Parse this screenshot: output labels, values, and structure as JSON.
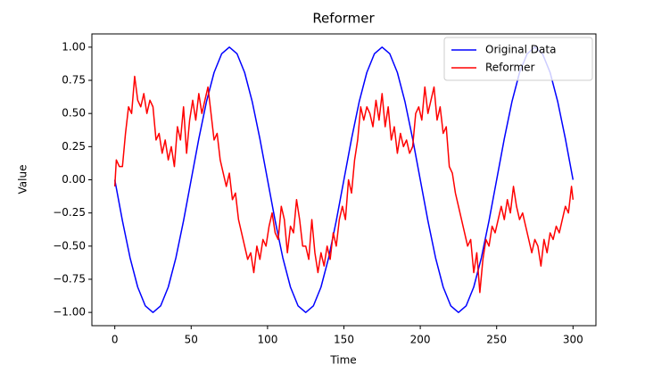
{
  "chart_data": {
    "type": "line",
    "title": "Reformer",
    "x_label": "Time",
    "y_label": "Value",
    "xlim": [
      -15,
      315
    ],
    "ylim": [
      -1.1,
      1.1
    ],
    "xticks": [
      0,
      50,
      100,
      150,
      200,
      250,
      300
    ],
    "yticks": [
      {
        "value": -1,
        "label": "−1.00"
      },
      {
        "value": -0.75,
        "label": "−0.75"
      },
      {
        "value": -0.5,
        "label": "−0.50"
      },
      {
        "value": -0.25,
        "label": "−0.25"
      },
      {
        "value": 0,
        "label": "0.00"
      },
      {
        "value": 0.25,
        "label": "0.25"
      },
      {
        "value": 0.5,
        "label": "0.50"
      },
      {
        "value": 0.75,
        "label": "0.75"
      },
      {
        "value": 1,
        "label": "1.00"
      }
    ],
    "legend": "upper right",
    "series": [
      {
        "name": "Original Data",
        "color": "#0000ff",
        "x": [
          0,
          5,
          10,
          15,
          20,
          25,
          30,
          35,
          40,
          45,
          50,
          55,
          60,
          65,
          70,
          75,
          80,
          85,
          90,
          95,
          100,
          105,
          110,
          115,
          120,
          125,
          130,
          135,
          140,
          145,
          150,
          155,
          160,
          165,
          170,
          175,
          180,
          185,
          190,
          195,
          200,
          205,
          210,
          215,
          220,
          225,
          230,
          235,
          240,
          245,
          250,
          255,
          260,
          265,
          270,
          275,
          280,
          285,
          290,
          295,
          300
        ],
        "values": [
          0,
          -0.309,
          -0.588,
          -0.809,
          -0.951,
          -1,
          -0.951,
          -0.809,
          -0.588,
          -0.309,
          0,
          0.309,
          0.588,
          0.809,
          0.951,
          1,
          0.951,
          0.809,
          0.588,
          0.309,
          0,
          -0.309,
          -0.588,
          -0.809,
          -0.951,
          -1,
          -0.951,
          -0.809,
          -0.588,
          -0.309,
          0,
          0.309,
          0.588,
          0.809,
          0.951,
          1,
          0.951,
          0.809,
          0.588,
          0.309,
          0,
          -0.309,
          -0.588,
          -0.809,
          -0.951,
          -1,
          -0.951,
          -0.809,
          -0.588,
          -0.309,
          0,
          0.309,
          0.588,
          0.809,
          0.951,
          1,
          0.951,
          0.809,
          0.588,
          0.309,
          0
        ]
      },
      {
        "name": "Reformer",
        "color": "#ff0000",
        "x": [
          0,
          1,
          3,
          5,
          7,
          9,
          11,
          13,
          15,
          17,
          19,
          21,
          23,
          25,
          27,
          29,
          31,
          33,
          35,
          37,
          39,
          41,
          43,
          45,
          47,
          49,
          51,
          53,
          55,
          57,
          59,
          61,
          63,
          65,
          67,
          69,
          71,
          73,
          75,
          77,
          79,
          81,
          83,
          85,
          87,
          89,
          91,
          93,
          95,
          97,
          99,
          101,
          103,
          105,
          107,
          109,
          111,
          113,
          115,
          117,
          119,
          121,
          123,
          125,
          127,
          129,
          131,
          133,
          135,
          137,
          139,
          141,
          143,
          145,
          147,
          149,
          151,
          153,
          155,
          157,
          159,
          161,
          163,
          165,
          167,
          169,
          171,
          173,
          175,
          177,
          179,
          181,
          183,
          185,
          187,
          189,
          191,
          193,
          195,
          197,
          199,
          201,
          203,
          205,
          207,
          209,
          211,
          213,
          215,
          217,
          219,
          221,
          223,
          225,
          227,
          229,
          231,
          233,
          235,
          237,
          239,
          241,
          243,
          245,
          247,
          249,
          251,
          253,
          255,
          257,
          259,
          261,
          263,
          265,
          267,
          269,
          271,
          273,
          275,
          277,
          279,
          281,
          283,
          285,
          287,
          289,
          291,
          293,
          295,
          297,
          299,
          300
        ],
        "values": [
          -0.05,
          0.15,
          0.1,
          0.1,
          0.35,
          0.55,
          0.5,
          0.78,
          0.6,
          0.55,
          0.65,
          0.5,
          0.6,
          0.55,
          0.3,
          0.35,
          0.2,
          0.3,
          0.15,
          0.25,
          0.1,
          0.4,
          0.3,
          0.55,
          0.2,
          0.45,
          0.6,
          0.45,
          0.65,
          0.5,
          0.6,
          0.7,
          0.5,
          0.3,
          0.35,
          0.15,
          0.05,
          -0.05,
          0.05,
          -0.15,
          -0.1,
          -0.3,
          -0.4,
          -0.5,
          -0.6,
          -0.55,
          -0.7,
          -0.5,
          -0.6,
          -0.45,
          -0.5,
          -0.35,
          -0.25,
          -0.4,
          -0.45,
          -0.2,
          -0.3,
          -0.55,
          -0.35,
          -0.4,
          -0.15,
          -0.3,
          -0.5,
          -0.5,
          -0.6,
          -0.3,
          -0.55,
          -0.7,
          -0.55,
          -0.65,
          -0.5,
          -0.6,
          -0.4,
          -0.5,
          -0.3,
          -0.2,
          -0.3,
          0,
          -0.1,
          0.15,
          0.3,
          0.55,
          0.45,
          0.55,
          0.5,
          0.4,
          0.6,
          0.45,
          0.65,
          0.4,
          0.55,
          0.3,
          0.4,
          0.2,
          0.35,
          0.25,
          0.3,
          0.2,
          0.25,
          0.5,
          0.55,
          0.45,
          0.7,
          0.5,
          0.6,
          0.7,
          0.45,
          0.55,
          0.35,
          0.4,
          0.1,
          0.05,
          -0.1,
          -0.2,
          -0.3,
          -0.4,
          -0.5,
          -0.45,
          -0.7,
          -0.55,
          -0.85,
          -0.6,
          -0.45,
          -0.5,
          -0.35,
          -0.4,
          -0.3,
          -0.2,
          -0.3,
          -0.15,
          -0.25,
          -0.05,
          -0.2,
          -0.3,
          -0.25,
          -0.35,
          -0.45,
          -0.55,
          -0.45,
          -0.5,
          -0.65,
          -0.45,
          -0.55,
          -0.4,
          -0.45,
          -0.35,
          -0.4,
          -0.3,
          -0.2,
          -0.25,
          -0.05,
          -0.15
        ]
      }
    ]
  }
}
